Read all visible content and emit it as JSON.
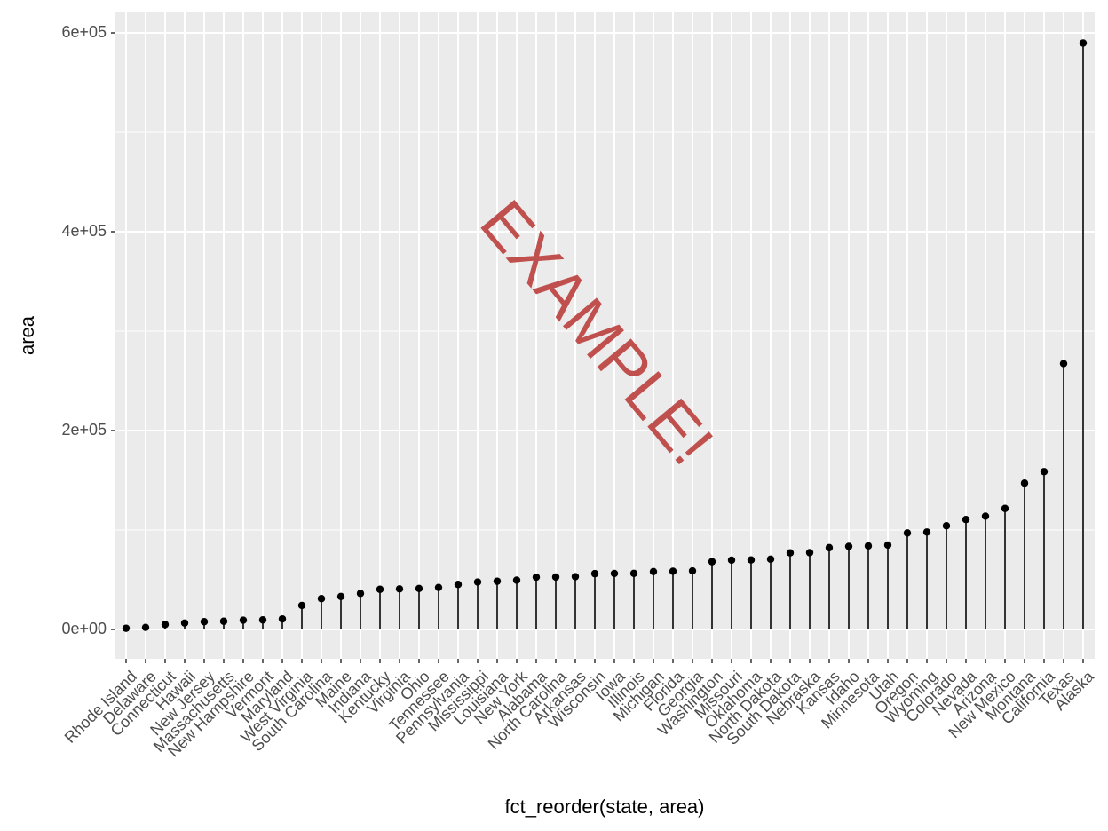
{
  "chart_data": {
    "type": "lollipop",
    "xlabel": "fct_reorder(state, area)",
    "ylabel": "area",
    "watermark": "EXAMPLE!",
    "ylim": [
      -30000,
      612000
    ],
    "yticks": [
      {
        "value": 0,
        "label": "0e+00"
      },
      {
        "value": 200000,
        "label": "2e+05"
      },
      {
        "value": 400000,
        "label": "4e+05"
      },
      {
        "value": 600000,
        "label": "6e+05"
      }
    ],
    "grid": true,
    "colors": {
      "panel": "#ebebeb",
      "grid": "#ffffff",
      "mark": "#000000",
      "watermark": "#c0504d"
    },
    "categories": [
      "Rhode Island",
      "Delaware",
      "Connecticut",
      "Hawaii",
      "New Jersey",
      "Massachusetts",
      "New Hampshire",
      "Vermont",
      "Maryland",
      "West Virginia",
      "South Carolina",
      "Maine",
      "Indiana",
      "Kentucky",
      "Virginia",
      "Ohio",
      "Tennessee",
      "Pennsylvania",
      "Mississippi",
      "Louisiana",
      "New York",
      "Alabama",
      "North Carolina",
      "Arkansas",
      "Wisconsin",
      "Iowa",
      "Illinois",
      "Michigan",
      "Florida",
      "Georgia",
      "Washington",
      "Missouri",
      "Oklahoma",
      "North Dakota",
      "South Dakota",
      "Nebraska",
      "Kansas",
      "Idaho",
      "Minnesota",
      "Utah",
      "Oregon",
      "Wyoming",
      "Colorado",
      "Nevada",
      "Arizona",
      "New Mexico",
      "Montana",
      "California",
      "Texas",
      "Alaska"
    ],
    "values": [
      1214,
      2057,
      5009,
      6450,
      7836,
      8257,
      9304,
      9609,
      10577,
      24181,
      31055,
      33215,
      36291,
      40395,
      40815,
      41222,
      42244,
      45333,
      47716,
      48523,
      49576,
      52609,
      52712,
      53104,
      56154,
      56290,
      56400,
      58216,
      58560,
      58876,
      68192,
      69686,
      69919,
      70665,
      77047,
      77227,
      82264,
      83557,
      84068,
      84916,
      96981,
      97914,
      104247,
      110540,
      113909,
      121666,
      147138,
      158693,
      267339,
      589757
    ]
  }
}
